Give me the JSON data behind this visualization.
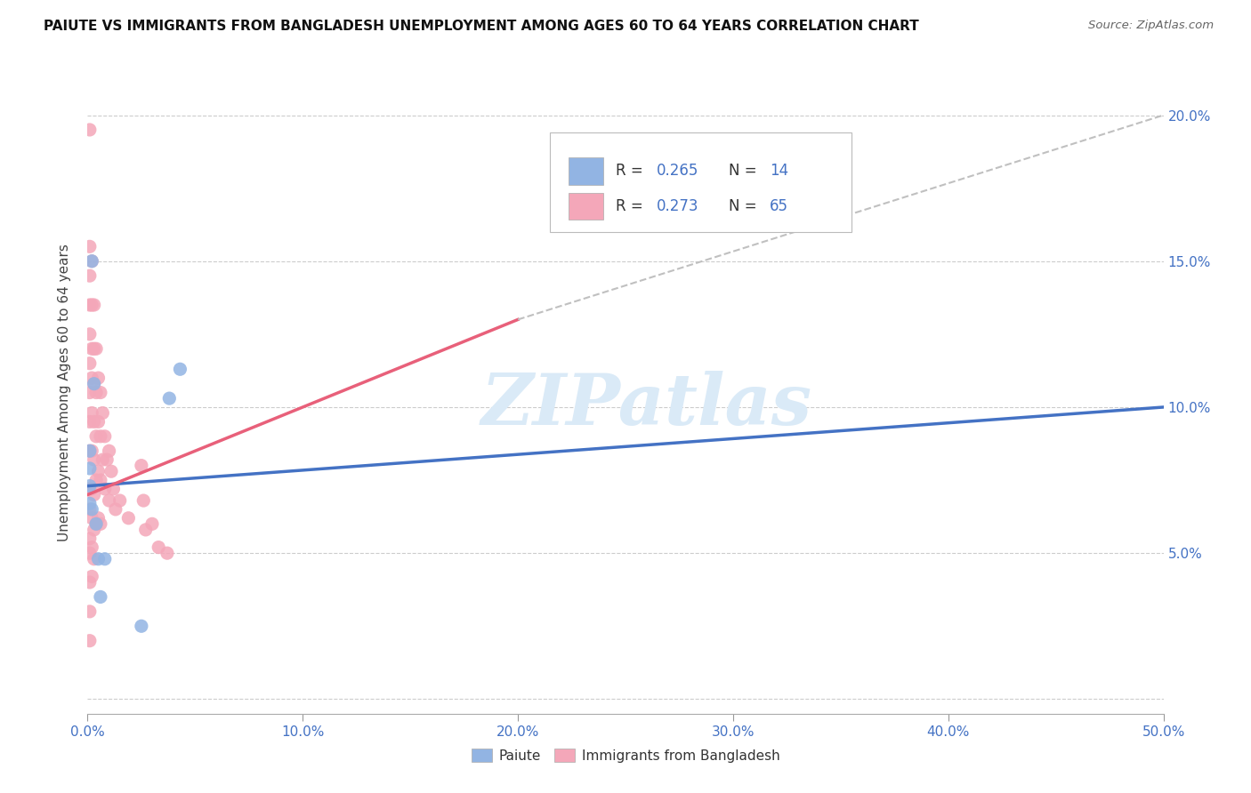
{
  "title": "PAIUTE VS IMMIGRANTS FROM BANGLADESH UNEMPLOYMENT AMONG AGES 60 TO 64 YEARS CORRELATION CHART",
  "source": "Source: ZipAtlas.com",
  "ylabel": "Unemployment Among Ages 60 to 64 years",
  "xlim": [
    0.0,
    0.5
  ],
  "ylim": [
    -0.005,
    0.215
  ],
  "xticks": [
    0.0,
    0.1,
    0.2,
    0.3,
    0.4,
    0.5
  ],
  "yticks": [
    0.0,
    0.05,
    0.1,
    0.15,
    0.2
  ],
  "xtick_labels": [
    "0.0%",
    "10.0%",
    "20.0%",
    "30.0%",
    "40.0%",
    "50.0%"
  ],
  "ytick_labels_right": [
    "",
    "5.0%",
    "10.0%",
    "15.0%",
    "20.0%"
  ],
  "blue_color": "#92b4e3",
  "pink_color": "#f4a7b9",
  "blue_line_color": "#4472c4",
  "pink_line_color": "#e8607a",
  "gray_dash_color": "#c0c0c0",
  "watermark": "ZIPatlas",
  "watermark_color": "#daeaf7",
  "blue_R": "0.265",
  "blue_N": "14",
  "pink_R": "0.273",
  "pink_N": "65",
  "paiute_x": [
    0.001,
    0.001,
    0.001,
    0.001,
    0.002,
    0.002,
    0.003,
    0.004,
    0.005,
    0.006,
    0.008,
    0.025,
    0.038,
    0.043
  ],
  "paiute_y": [
    0.085,
    0.079,
    0.073,
    0.067,
    0.15,
    0.065,
    0.108,
    0.06,
    0.048,
    0.035,
    0.048,
    0.025,
    0.103,
    0.113
  ],
  "bd_x": [
    0.001,
    0.001,
    0.001,
    0.001,
    0.001,
    0.001,
    0.001,
    0.001,
    0.001,
    0.001,
    0.001,
    0.001,
    0.001,
    0.001,
    0.001,
    0.001,
    0.002,
    0.002,
    0.002,
    0.002,
    0.002,
    0.002,
    0.002,
    0.002,
    0.002,
    0.002,
    0.003,
    0.003,
    0.003,
    0.003,
    0.003,
    0.003,
    0.003,
    0.003,
    0.004,
    0.004,
    0.004,
    0.004,
    0.004,
    0.005,
    0.005,
    0.005,
    0.005,
    0.006,
    0.006,
    0.006,
    0.006,
    0.007,
    0.007,
    0.008,
    0.008,
    0.009,
    0.01,
    0.01,
    0.011,
    0.012,
    0.013,
    0.015,
    0.019,
    0.025,
    0.026,
    0.027,
    0.03,
    0.033,
    0.037
  ],
  "bd_y": [
    0.195,
    0.155,
    0.145,
    0.135,
    0.125,
    0.115,
    0.105,
    0.095,
    0.085,
    0.072,
    0.065,
    0.055,
    0.05,
    0.04,
    0.03,
    0.02,
    0.15,
    0.135,
    0.12,
    0.11,
    0.098,
    0.085,
    0.072,
    0.062,
    0.052,
    0.042,
    0.135,
    0.12,
    0.108,
    0.095,
    0.082,
    0.07,
    0.058,
    0.048,
    0.12,
    0.105,
    0.09,
    0.075,
    0.06,
    0.11,
    0.095,
    0.078,
    0.062,
    0.105,
    0.09,
    0.075,
    0.06,
    0.098,
    0.082,
    0.09,
    0.072,
    0.082,
    0.085,
    0.068,
    0.078,
    0.072,
    0.065,
    0.068,
    0.062,
    0.08,
    0.068,
    0.058,
    0.06,
    0.052,
    0.05
  ],
  "blue_trendline": [
    [
      0.0,
      0.5
    ],
    [
      0.073,
      0.1
    ]
  ],
  "pink_trendline_solid": [
    [
      0.0,
      0.2
    ],
    [
      0.07,
      0.13
    ]
  ],
  "pink_trendline_dash": [
    [
      0.2,
      0.5
    ],
    [
      0.13,
      0.2
    ]
  ]
}
